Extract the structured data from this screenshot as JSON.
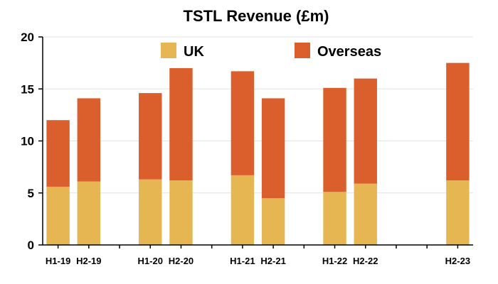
{
  "chart_data": {
    "type": "bar",
    "stacked": true,
    "title": "TSTL Revenue (£m)",
    "xlabel": "",
    "ylabel": "",
    "ylim": [
      0,
      20
    ],
    "yticks": [
      0,
      5,
      10,
      15,
      20
    ],
    "grid": true,
    "legend": "top",
    "slots": [
      "H1-19",
      "H2-19",
      "",
      "H1-20",
      "H2-20",
      "",
      "H1-21",
      "H2-21",
      "",
      "H1-22",
      "H2-22",
      "",
      "",
      "H2-23"
    ],
    "categories": [
      "H1-19",
      "H2-19",
      "H1-20",
      "H2-20",
      "H1-21",
      "H2-21",
      "H1-22",
      "H2-22",
      "H2-23"
    ],
    "series": [
      {
        "name": "UK",
        "color": "#E6B652",
        "values": [
          5.6,
          6.1,
          6.3,
          6.2,
          6.7,
          4.5,
          5.1,
          5.9,
          6.2
        ]
      },
      {
        "name": "Overseas",
        "color": "#DB5E2D",
        "values": [
          6.4,
          8.0,
          8.3,
          10.8,
          10.0,
          9.6,
          10.0,
          10.1,
          11.3
        ]
      }
    ]
  }
}
